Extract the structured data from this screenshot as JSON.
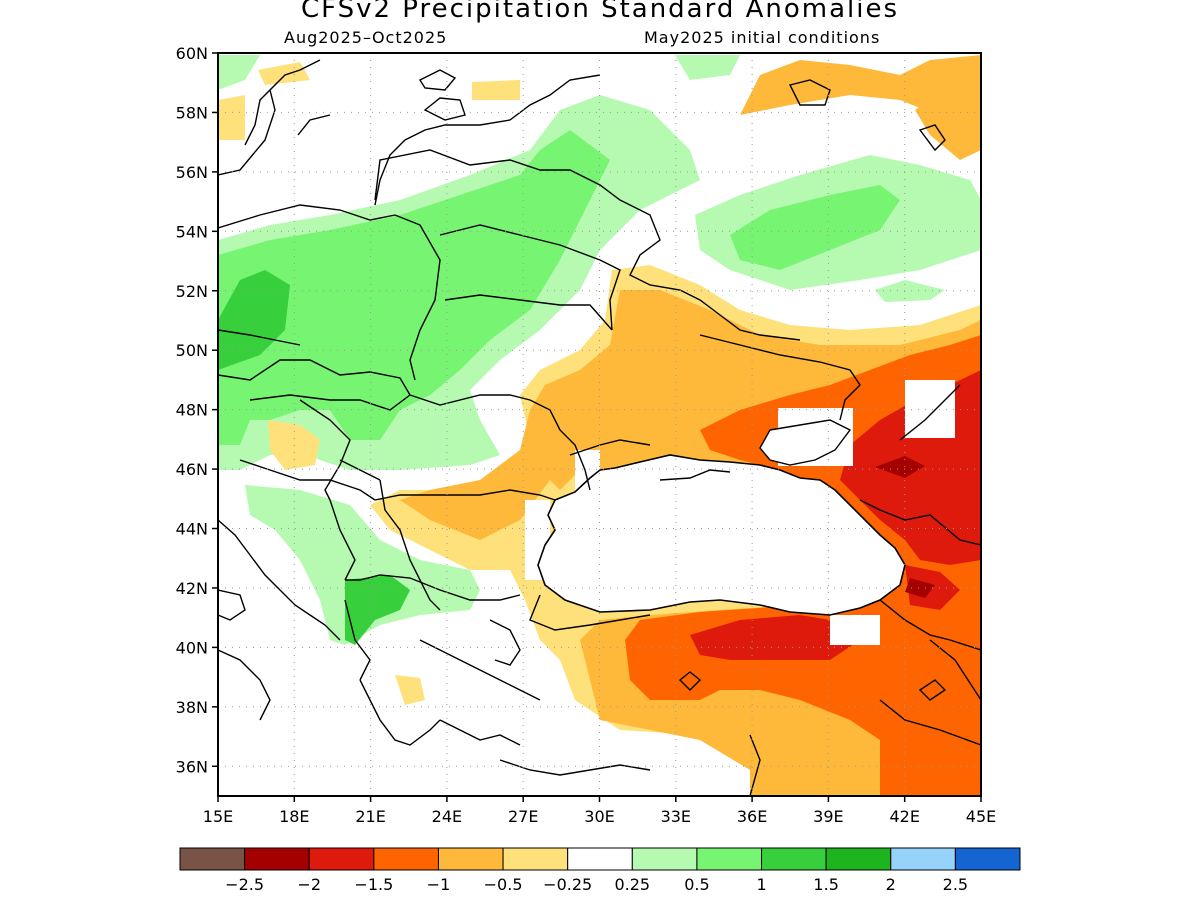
{
  "title": "CFSv2 Precipitation Standard Anomalies",
  "subtitle_left": "Aug2025–Oct2025",
  "subtitle_right": "May2025 initial conditions",
  "lat_labels": [
    "60N",
    "58N",
    "56N",
    "54N",
    "52N",
    "50N",
    "48N",
    "46N",
    "44N",
    "42N",
    "40N",
    "38N",
    "36N"
  ],
  "lon_labels": [
    "15E",
    "18E",
    "21E",
    "24E",
    "27E",
    "30E",
    "33E",
    "36E",
    "39E",
    "42E",
    "45E"
  ],
  "colorbar": {
    "colors": [
      "#7a5347",
      "#a50000",
      "#dd1a0c",
      "#fe6400",
      "#feb83a",
      "#fee17a",
      "#ffffff",
      "#b5fab0",
      "#78f473",
      "#37d03c",
      "#1eb41e",
      "#96d2fa",
      "#1464d2"
    ],
    "labels": [
      "−2.5",
      "−2",
      "−1.5",
      "−1",
      "−0.5",
      "−0.25",
      "0.25",
      "0.5",
      "1",
      "1.5",
      "2",
      "2.5"
    ]
  },
  "map_extent": {
    "lon": [
      15,
      45
    ],
    "lat": [
      35,
      60
    ]
  }
}
